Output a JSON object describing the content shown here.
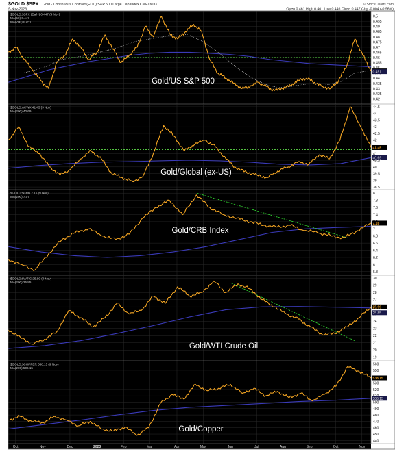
{
  "header": {
    "symbol": "$GOLD:$SPX",
    "description": "Gold - Continuous Contract (EOD)/S&P 500 Large Cap Index  CME/INDX",
    "date": "9-Nov-2023",
    "ohlc": "Open 0.461  High 0.461  Low 0.446  Close 0.447  Chg -0.004 (-0.96%)",
    "watermark": "© StockCharts.com"
  },
  "x_axis_labels": [
    "Oct",
    "Nov",
    "Dec",
    "2023",
    "Feb",
    "Mar",
    "Apr",
    "May",
    "Jun",
    "Jul",
    "Aug",
    "Sep",
    "Oct",
    "Nov"
  ],
  "colors": {
    "price": "#f5a623",
    "ma": "#3a3ab8",
    "ma50": "#bbbbbb",
    "support": "#5fe04a",
    "trend": "#2fd02f",
    "background": "#000000",
    "grid": "#2a2a2a",
    "text": "#cccccc"
  },
  "chart_data": [
    {
      "type": "line",
      "title": "Gold/US S&P 500",
      "legend": [
        "$GOLD:$SPX (Daily) 0.447 (9 Nov)",
        "MA(50) 0.447",
        "MA(200) 0.451"
      ],
      "ylim": [
        0.415,
        0.505
      ],
      "y_ticks": [
        0.42,
        0.425,
        0.43,
        0.435,
        0.44,
        0.445,
        0.45,
        0.455,
        0.46,
        0.465,
        0.47,
        0.475,
        0.48,
        0.485,
        0.49,
        0.495,
        0.5
      ],
      "support_level": 0.46,
      "last_label": "0.447",
      "ma_label": "0.451",
      "series": [
        {
          "name": "$GOLD:$SPX",
          "values": [
            0.465,
            0.47,
            0.458,
            0.448,
            0.438,
            0.43,
            0.455,
            0.462,
            0.478,
            0.47,
            0.458,
            0.465,
            0.482,
            0.468,
            0.455,
            0.462,
            0.47,
            0.49,
            0.48,
            0.5,
            0.483,
            0.478,
            0.485,
            0.492,
            0.485,
            0.458,
            0.445,
            0.44,
            0.435,
            0.43,
            0.432,
            0.436,
            0.432,
            0.428,
            0.43,
            0.433,
            0.438,
            0.44,
            0.436,
            0.432,
            0.43,
            0.438,
            0.452,
            0.478,
            0.462,
            0.447
          ]
        },
        {
          "name": "MA(200)",
          "values": [
            0.436,
            0.442,
            0.448,
            0.452,
            0.456,
            0.459,
            0.462,
            0.464,
            0.465,
            0.465,
            0.464,
            0.463,
            0.461,
            0.458,
            0.456,
            0.454,
            0.453,
            0.452,
            0.451
          ]
        }
      ]
    },
    {
      "type": "line",
      "title": "Gold/Global (ex-US)",
      "legend": [
        "$GOLD:ACWX 41.45 (9 Nov)",
        "MA(200) 40.69"
      ],
      "ylim": [
        38.3,
        44.7
      ],
      "y_ticks": [
        38.5,
        39,
        39.5,
        40,
        40.5,
        41,
        41.5,
        42,
        42.5,
        43,
        43.5,
        44,
        44.5
      ],
      "support_level": 41.3,
      "last_label": "41.45",
      "ma_label": "40.69",
      "series": [
        {
          "name": "$GOLD:ACWX",
          "values": [
            42.0,
            43.0,
            41.5,
            41.0,
            40.0,
            39.4,
            39.8,
            40.6,
            41.2,
            40.6,
            39.5,
            39.2,
            38.9,
            39.3,
            41.0,
            43.1,
            42.3,
            41.2,
            41.7,
            42.0,
            41.5,
            40.6,
            39.9,
            39.6,
            39.4,
            39.2,
            39.7,
            40.0,
            40.4,
            40.2,
            40.9,
            40.6,
            42.0,
            44.5,
            43.0,
            41.45
          ]
        },
        {
          "name": "MA(200)",
          "values": [
            39.9,
            40.1,
            40.25,
            40.35,
            40.4,
            40.45,
            40.5,
            40.45,
            40.35,
            40.2,
            40.15,
            40.25,
            40.69
          ]
        }
      ]
    },
    {
      "type": "line",
      "title": "Gold/CRB Index",
      "legend": [
        "$GOLD:$CRB 7.16 (9 Nov)",
        "MA(200) 7.07"
      ],
      "ylim": [
        5.7,
        8.1
      ],
      "y_ticks": [
        5.8,
        6.0,
        6.2,
        6.4,
        6.6,
        6.8,
        7.0,
        7.2,
        7.4,
        7.6,
        7.8,
        8.0
      ],
      "last_label": "7.16",
      "trendline": [
        [
          0.52,
          8.0
        ],
        [
          0.935,
          6.75
        ]
      ],
      "series": [
        {
          "name": "$GOLD:$CRB",
          "values": [
            6.15,
            6.0,
            5.85,
            6.3,
            6.7,
            6.9,
            7.0,
            6.8,
            6.7,
            6.85,
            7.3,
            7.6,
            7.8,
            7.4,
            7.95,
            7.6,
            7.4,
            7.3,
            7.2,
            7.1,
            7.05,
            7.1,
            6.95,
            6.9,
            6.8,
            6.75,
            6.95,
            7.16
          ]
        },
        {
          "name": "MA(200)",
          "values": [
            6.5,
            6.35,
            6.25,
            6.2,
            6.25,
            6.35,
            6.5,
            6.7,
            6.9,
            7.0,
            7.04,
            7.07
          ]
        }
      ]
    },
    {
      "type": "line",
      "title": "Gold/WTI Crude Oil",
      "legend": [
        "$GOLD:$WTIC 25.99 (9 Nov)",
        "MA(200) 25.85"
      ],
      "ylim": [
        18.5,
        30.4
      ],
      "y_ticks": [
        19,
        20,
        21,
        22,
        23,
        24,
        25,
        26,
        27,
        28,
        29,
        30
      ],
      "last_label": "25.99",
      "ma_label": "25.85",
      "trendline": [
        [
          0.615,
          29.3
        ],
        [
          0.955,
          21.3
        ]
      ],
      "series": [
        {
          "name": "$GOLD:$WTIC",
          "values": [
            22.8,
            21.8,
            20.8,
            21.5,
            22.5,
            25.5,
            24.5,
            23.2,
            24.5,
            26.5,
            25.0,
            25.5,
            27.5,
            26.5,
            28.8,
            27.5,
            28.0,
            29.6,
            28.0,
            29.2,
            28.5,
            27.0,
            26.0,
            25.0,
            24.3,
            23.2,
            22.1,
            22.3,
            23.2,
            24.5,
            25.99
          ]
        },
        {
          "name": "MA(200)",
          "values": [
            20.2,
            20.6,
            21.3,
            22.3,
            23.4,
            24.6,
            25.6,
            26.0,
            26.05,
            25.95,
            25.85
          ]
        }
      ]
    },
    {
      "type": "line",
      "title": "Gold/Copper",
      "legend": [
        "$GOLD:$COPPER 538.15 (9 Nov)",
        "MA(200) 506.15"
      ],
      "ylim": [
        435,
        565
      ],
      "y_ticks": [
        440,
        450,
        460,
        470,
        480,
        490,
        500,
        510,
        520,
        530,
        540,
        550,
        560
      ],
      "support_level": 530,
      "last_label": "538.15",
      "ma_label": "506.15",
      "series": [
        {
          "name": "$GOLD:$COPPER",
          "values": [
            472,
            478,
            470,
            468,
            478,
            472,
            463,
            470,
            458,
            455,
            461,
            448,
            460,
            498,
            512,
            505,
            528,
            518,
            522,
            528,
            514,
            522,
            510,
            517,
            507,
            514,
            502,
            512,
            525,
            556,
            548,
            538.15
          ]
        },
        {
          "name": "MA(200)",
          "values": [
            458,
            465,
            472,
            480,
            487,
            492,
            495,
            498,
            501,
            503,
            506.15
          ]
        }
      ]
    }
  ]
}
